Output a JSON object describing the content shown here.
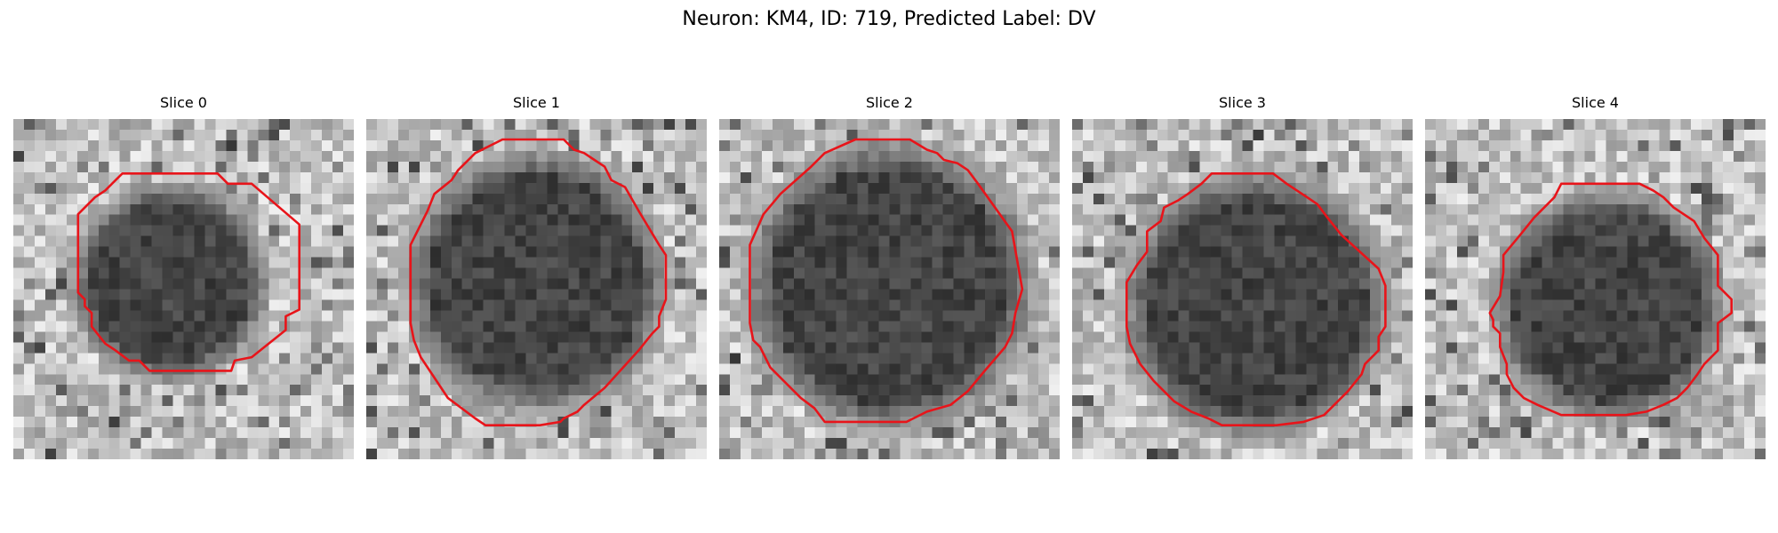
{
  "figure": {
    "title": "Neuron: KM4, ID: 719, Predicted Label: DV"
  },
  "contour_color": "#e8141a",
  "panels": [
    {
      "title": "Slice 0",
      "cell_center": [
        0.5,
        0.48
      ],
      "cell_radius": 0.28,
      "blob_offset": [
        -0.04,
        0.0
      ],
      "texture_seed": 11,
      "contour": [
        [
          0.32,
          0.16
        ],
        [
          0.6,
          0.16
        ],
        [
          0.63,
          0.19
        ],
        [
          0.7,
          0.19
        ],
        [
          0.84,
          0.31
        ],
        [
          0.84,
          0.56
        ],
        [
          0.8,
          0.58
        ],
        [
          0.8,
          0.62
        ],
        [
          0.7,
          0.7
        ],
        [
          0.65,
          0.71
        ],
        [
          0.64,
          0.74
        ],
        [
          0.4,
          0.74
        ],
        [
          0.37,
          0.71
        ],
        [
          0.34,
          0.71
        ],
        [
          0.3,
          0.68
        ],
        [
          0.27,
          0.66
        ],
        [
          0.23,
          0.61
        ],
        [
          0.23,
          0.57
        ],
        [
          0.21,
          0.55
        ],
        [
          0.21,
          0.53
        ],
        [
          0.19,
          0.51
        ],
        [
          0.19,
          0.28
        ],
        [
          0.24,
          0.23
        ],
        [
          0.27,
          0.21
        ],
        [
          0.3,
          0.18
        ]
      ]
    },
    {
      "title": "Slice 1",
      "cell_center": [
        0.5,
        0.48
      ],
      "cell_radius": 0.37,
      "blob_offset": [
        0.0,
        0.0
      ],
      "texture_seed": 23,
      "contour": [
        [
          0.4,
          0.06
        ],
        [
          0.58,
          0.06
        ],
        [
          0.61,
          0.09
        ],
        [
          0.64,
          0.1
        ],
        [
          0.67,
          0.12
        ],
        [
          0.7,
          0.14
        ],
        [
          0.72,
          0.18
        ],
        [
          0.76,
          0.2
        ],
        [
          0.8,
          0.27
        ],
        [
          0.86,
          0.37
        ],
        [
          0.88,
          0.4
        ],
        [
          0.88,
          0.53
        ],
        [
          0.86,
          0.58
        ],
        [
          0.86,
          0.61
        ],
        [
          0.84,
          0.63
        ],
        [
          0.8,
          0.68
        ],
        [
          0.7,
          0.79
        ],
        [
          0.64,
          0.84
        ],
        [
          0.62,
          0.86
        ],
        [
          0.58,
          0.88
        ],
        [
          0.57,
          0.89
        ],
        [
          0.51,
          0.9
        ],
        [
          0.35,
          0.9
        ],
        [
          0.32,
          0.88
        ],
        [
          0.24,
          0.82
        ],
        [
          0.16,
          0.7
        ],
        [
          0.14,
          0.65
        ],
        [
          0.13,
          0.6
        ],
        [
          0.13,
          0.37
        ],
        [
          0.18,
          0.27
        ],
        [
          0.2,
          0.22
        ],
        [
          0.25,
          0.18
        ],
        [
          0.27,
          0.15
        ],
        [
          0.32,
          0.1
        ]
      ]
    },
    {
      "title": "Slice 2",
      "cell_center": [
        0.5,
        0.47
      ],
      "cell_radius": 0.41,
      "blob_offset": [
        0.0,
        0.02
      ],
      "texture_seed": 37,
      "contour": [
        [
          0.4,
          0.06
        ],
        [
          0.56,
          0.06
        ],
        [
          0.61,
          0.09
        ],
        [
          0.64,
          0.1
        ],
        [
          0.66,
          0.12
        ],
        [
          0.7,
          0.13
        ],
        [
          0.73,
          0.15
        ],
        [
          0.76,
          0.19
        ],
        [
          0.86,
          0.33
        ],
        [
          0.89,
          0.5
        ],
        [
          0.87,
          0.57
        ],
        [
          0.86,
          0.63
        ],
        [
          0.84,
          0.67
        ],
        [
          0.78,
          0.74
        ],
        [
          0.73,
          0.8
        ],
        [
          0.68,
          0.84
        ],
        [
          0.61,
          0.86
        ],
        [
          0.55,
          0.89
        ],
        [
          0.31,
          0.89
        ],
        [
          0.28,
          0.85
        ],
        [
          0.24,
          0.82
        ],
        [
          0.15,
          0.73
        ],
        [
          0.12,
          0.67
        ],
        [
          0.1,
          0.65
        ],
        [
          0.09,
          0.6
        ],
        [
          0.09,
          0.37
        ],
        [
          0.13,
          0.28
        ],
        [
          0.18,
          0.22
        ],
        [
          0.27,
          0.14
        ],
        [
          0.31,
          0.1
        ]
      ]
    },
    {
      "title": "Slice 3",
      "cell_center": [
        0.54,
        0.53
      ],
      "cell_radius": 0.38,
      "blob_offset": [
        0.0,
        0.02
      ],
      "texture_seed": 53,
      "contour": [
        [
          0.41,
          0.16
        ],
        [
          0.59,
          0.16
        ],
        [
          0.63,
          0.19
        ],
        [
          0.66,
          0.21
        ],
        [
          0.69,
          0.23
        ],
        [
          0.72,
          0.25
        ],
        [
          0.75,
          0.29
        ],
        [
          0.79,
          0.34
        ],
        [
          0.9,
          0.44
        ],
        [
          0.92,
          0.49
        ],
        [
          0.92,
          0.61
        ],
        [
          0.9,
          0.64
        ],
        [
          0.9,
          0.68
        ],
        [
          0.86,
          0.72
        ],
        [
          0.85,
          0.75
        ],
        [
          0.81,
          0.8
        ],
        [
          0.77,
          0.84
        ],
        [
          0.74,
          0.87
        ],
        [
          0.68,
          0.89
        ],
        [
          0.6,
          0.9
        ],
        [
          0.52,
          0.9
        ],
        [
          0.44,
          0.9
        ],
        [
          0.4,
          0.88
        ],
        [
          0.35,
          0.86
        ],
        [
          0.3,
          0.83
        ],
        [
          0.24,
          0.77
        ],
        [
          0.2,
          0.72
        ],
        [
          0.17,
          0.66
        ],
        [
          0.16,
          0.61
        ],
        [
          0.16,
          0.48
        ],
        [
          0.19,
          0.43
        ],
        [
          0.22,
          0.39
        ],
        [
          0.22,
          0.33
        ],
        [
          0.26,
          0.3
        ],
        [
          0.27,
          0.26
        ],
        [
          0.31,
          0.24
        ],
        [
          0.34,
          0.22
        ],
        [
          0.38,
          0.19
        ]
      ]
    },
    {
      "title": "Slice 4",
      "cell_center": [
        0.54,
        0.55
      ],
      "cell_radius": 0.33,
      "blob_offset": [
        0.0,
        0.0
      ],
      "texture_seed": 71,
      "contour": [
        [
          0.4,
          0.19
        ],
        [
          0.63,
          0.19
        ],
        [
          0.67,
          0.21
        ],
        [
          0.7,
          0.23
        ],
        [
          0.73,
          0.26
        ],
        [
          0.79,
          0.3
        ],
        [
          0.82,
          0.35
        ],
        [
          0.86,
          0.4
        ],
        [
          0.86,
          0.49
        ],
        [
          0.9,
          0.53
        ],
        [
          0.9,
          0.57
        ],
        [
          0.86,
          0.6
        ],
        [
          0.86,
          0.68
        ],
        [
          0.82,
          0.72
        ],
        [
          0.8,
          0.75
        ],
        [
          0.77,
          0.79
        ],
        [
          0.74,
          0.82
        ],
        [
          0.7,
          0.84
        ],
        [
          0.65,
          0.86
        ],
        [
          0.59,
          0.87
        ],
        [
          0.4,
          0.87
        ],
        [
          0.33,
          0.84
        ],
        [
          0.29,
          0.82
        ],
        [
          0.26,
          0.79
        ],
        [
          0.24,
          0.75
        ],
        [
          0.24,
          0.72
        ],
        [
          0.22,
          0.67
        ],
        [
          0.22,
          0.63
        ],
        [
          0.2,
          0.61
        ],
        [
          0.2,
          0.59
        ],
        [
          0.19,
          0.57
        ],
        [
          0.22,
          0.52
        ],
        [
          0.23,
          0.45
        ],
        [
          0.23,
          0.4
        ],
        [
          0.28,
          0.34
        ],
        [
          0.32,
          0.29
        ],
        [
          0.38,
          0.23
        ]
      ]
    }
  ]
}
